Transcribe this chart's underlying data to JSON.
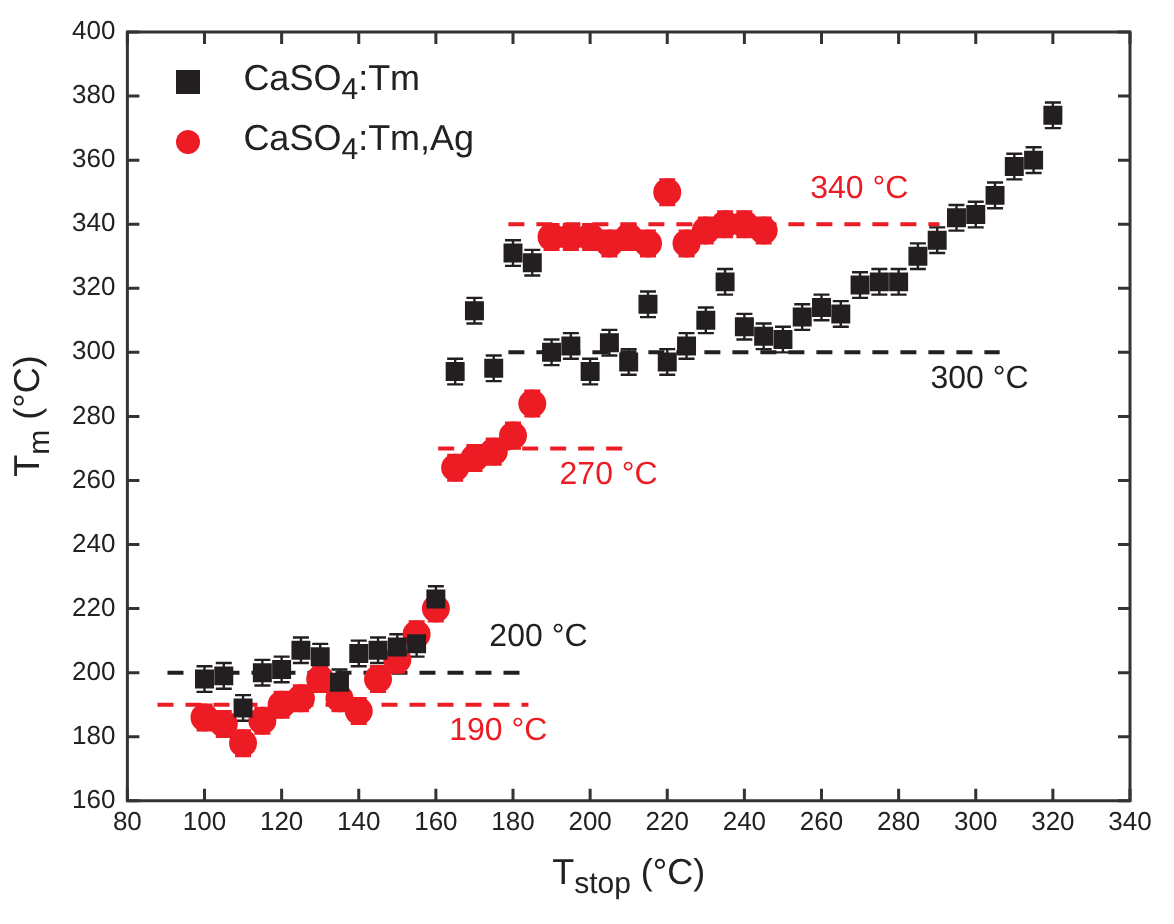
{
  "chart_data": {
    "type": "scatter",
    "xlabel": "T$_{stop}$ (°C)",
    "ylabel": "T$_{m}$ (°C)",
    "xlim": [
      80,
      340
    ],
    "xticks": [
      80,
      100,
      120,
      140,
      160,
      180,
      200,
      220,
      240,
      260,
      280,
      300,
      320,
      340
    ],
    "ylim": [
      160,
      400
    ],
    "yticks": [
      160,
      180,
      200,
      220,
      240,
      260,
      280,
      300,
      320,
      340,
      360,
      380,
      400
    ],
    "grid": false,
    "legend": "top left",
    "series": [
      {
        "name": "CaSO$_{4}$:Tm",
        "color": "#231f20",
        "marker": "square",
        "x": [
          100,
          105,
          110,
          115,
          120,
          125,
          130,
          135,
          140,
          145,
          150,
          155,
          160,
          165,
          170,
          175,
          180,
          185,
          190,
          195,
          200,
          205,
          210,
          215,
          220,
          225,
          230,
          235,
          240,
          245,
          250,
          255,
          260,
          265,
          270,
          275,
          280,
          285,
          290,
          295,
          300,
          305,
          310,
          315,
          320
        ],
        "values": [
          198,
          199,
          189,
          200,
          201,
          207,
          205,
          197,
          206,
          207,
          208,
          209,
          223,
          294,
          313,
          295,
          331,
          328,
          300,
          302,
          294,
          303,
          297,
          315,
          297,
          302,
          310,
          322,
          308,
          305,
          304,
          311,
          314,
          312,
          321,
          322,
          322,
          330,
          335,
          342,
          343,
          349,
          358,
          360,
          374
        ],
        "errors": [
          4,
          4,
          4,
          4,
          4,
          4,
          4,
          4,
          4,
          4,
          4,
          4,
          4,
          4,
          4,
          4,
          4,
          4,
          4,
          4,
          4,
          4,
          4,
          4,
          4,
          4,
          4,
          4,
          4,
          4,
          4,
          4,
          4,
          4,
          4,
          4,
          4,
          4,
          4,
          4,
          4,
          4,
          4,
          4,
          4
        ]
      },
      {
        "name": "CaSO$_{4}$:Tm,Ag",
        "color": "#ed1c24",
        "marker": "circle",
        "x": [
          100,
          105,
          110,
          115,
          120,
          125,
          130,
          135,
          140,
          145,
          150,
          155,
          160,
          165,
          170,
          175,
          180,
          185,
          190,
          195,
          200,
          205,
          210,
          215,
          220,
          225,
          230,
          235,
          240,
          245
        ],
        "values": [
          186,
          184,
          178,
          185,
          190,
          192,
          198,
          192,
          188,
          198,
          204,
          212,
          220,
          264,
          267,
          269,
          274,
          284,
          336,
          336,
          336,
          334,
          336,
          334,
          350,
          334,
          338,
          340,
          340,
          338
        ],
        "errors": [
          4,
          4,
          4,
          4,
          4,
          4,
          4,
          4,
          4,
          4,
          4,
          4,
          4,
          4,
          4,
          4,
          4,
          4,
          4,
          4,
          4,
          4,
          4,
          4,
          4,
          4,
          4,
          4,
          4,
          4
        ]
      }
    ],
    "ref_lines": [
      {
        "axis": "y",
        "value": 200,
        "label": "200 °C",
        "color": "#231f20",
        "line_style": "dashed"
      },
      {
        "axis": "y",
        "value": 190,
        "label": "190 °C",
        "color": "#ed1c24",
        "line_style": "dashed"
      },
      {
        "axis": "y",
        "value": 270,
        "label": "270 °C",
        "color": "#ed1c24",
        "line_style": "dashed"
      },
      {
        "axis": "y",
        "value": 300,
        "label": "300 °C",
        "color": "#231f20",
        "line_style": "dashed"
      },
      {
        "axis": "y",
        "value": 340,
        "label": "340 °C",
        "color": "#ed1c24",
        "line_style": "dashed"
      }
    ]
  }
}
